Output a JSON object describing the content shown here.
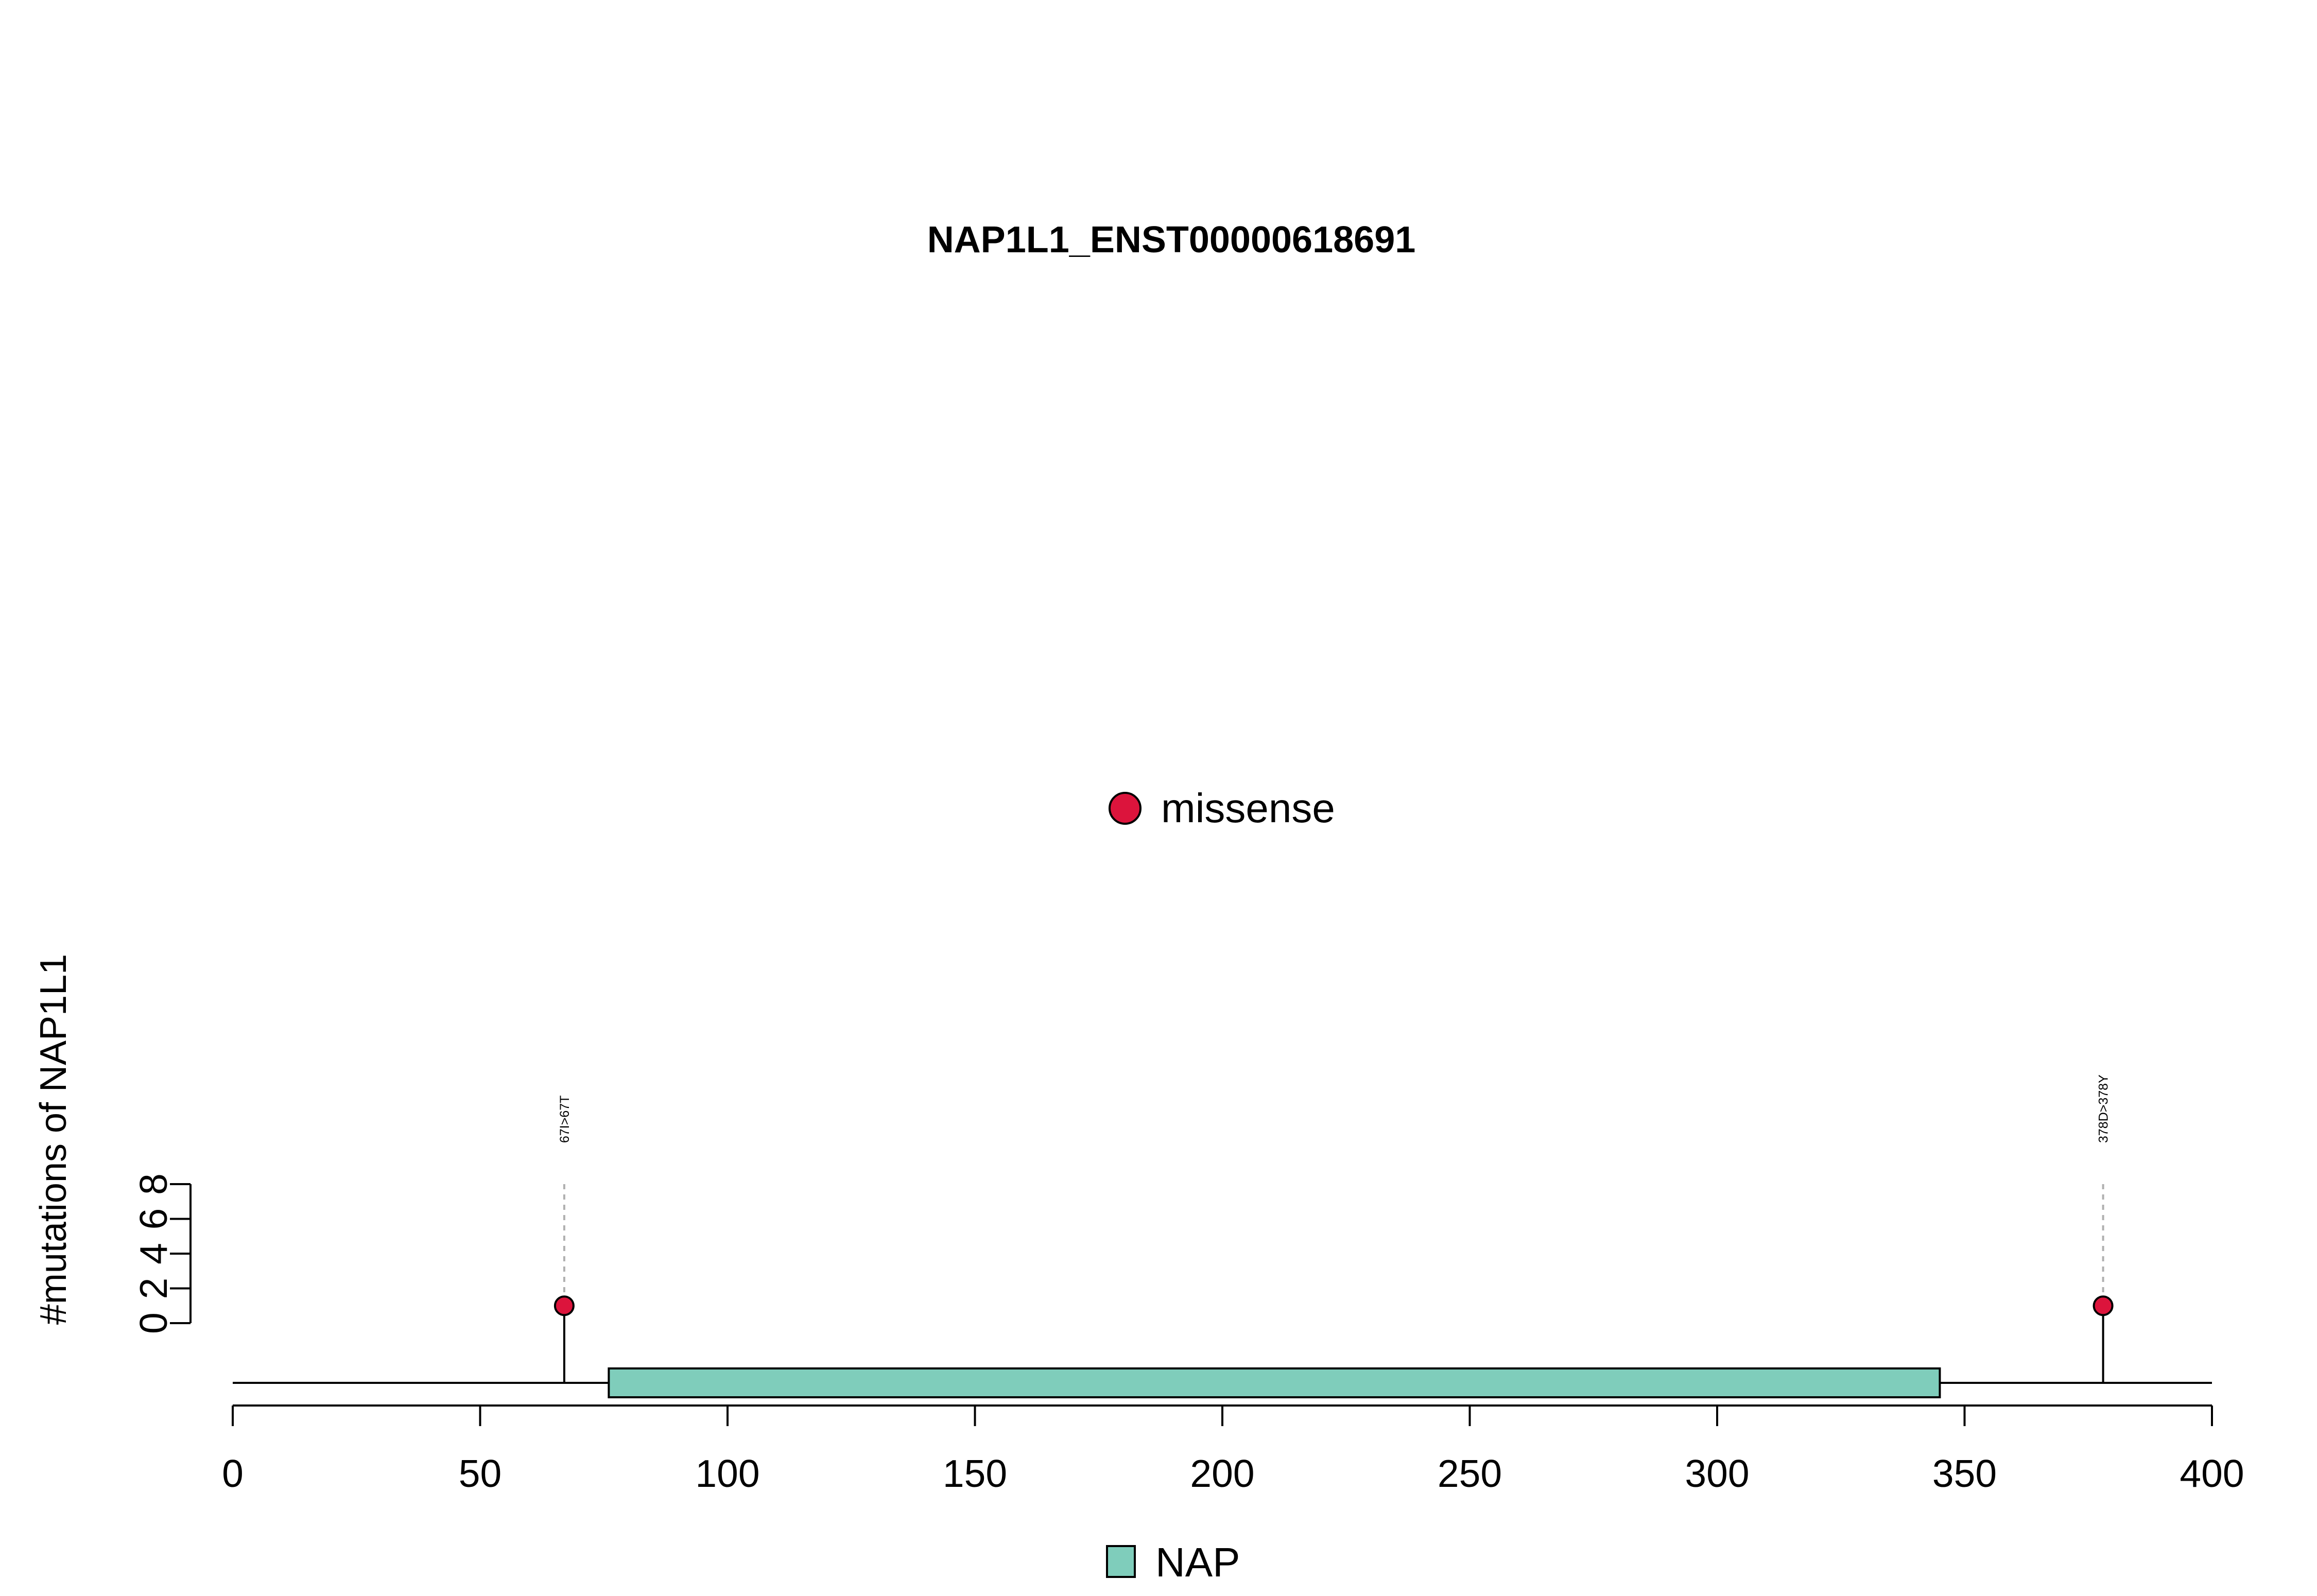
{
  "chart_data": {
    "type": "lollipop",
    "title": "NAP1L1_ENST00000618691",
    "xlabel": "",
    "ylabel": "#mutations of NAP1L1",
    "xlim": [
      0,
      400
    ],
    "ylim": [
      0,
      8
    ],
    "x_ticks": [
      0,
      50,
      100,
      150,
      200,
      250,
      300,
      350,
      400
    ],
    "y_ticks": [
      0,
      2,
      4,
      6,
      8
    ],
    "protein_length": 400,
    "domains": [
      {
        "name": "NAP",
        "start": 76,
        "end": 345,
        "color": "#7fcdbb"
      }
    ],
    "mutations": [
      {
        "position": 67,
        "count": 1,
        "type": "missense",
        "label": "67I>67T"
      },
      {
        "position": 378,
        "count": 1,
        "type": "missense",
        "label": "378D>378Y"
      }
    ],
    "mutation_legend": [
      {
        "label": "missense",
        "color": "#dc143c"
      }
    ],
    "domain_legend": [
      {
        "label": "NAP",
        "color": "#7fcdbb"
      }
    ],
    "grid": false
  }
}
